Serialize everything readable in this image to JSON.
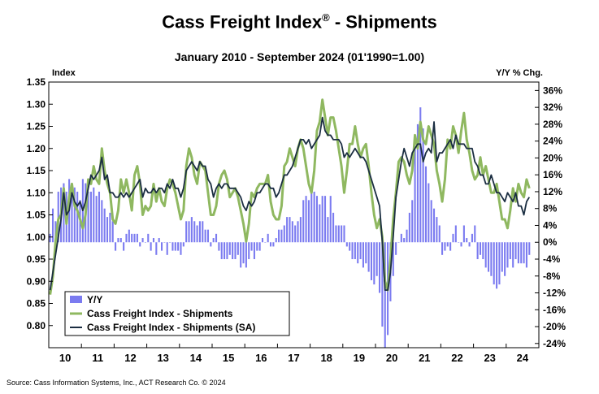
{
  "header": {
    "title": "Cass Freight Index",
    "title_mark": "®",
    "title_suffix": " - Shipments",
    "subtitle": "January 2010 - September 2024 (01'1990=1.00)"
  },
  "source": "Source: Cass Information Systems, Inc., ACT Research Co. © 2024",
  "colors": {
    "yy": "#7b7bf0",
    "nsa": "#8fb860",
    "sa": "#1b2e42",
    "frame": "#000000"
  },
  "chart_data": {
    "type": "line",
    "x_start": "2010-01",
    "x_end": "2024-09",
    "y_left": {
      "label": "Index",
      "range": [
        0.75,
        1.35
      ],
      "tick_labels": [
        "0.80",
        "0.85",
        "0.90",
        "0.95",
        "1.00",
        "1.05",
        "1.10",
        "1.15",
        "1.20",
        "1.25",
        "1.30",
        "1.35"
      ]
    },
    "y_right": {
      "label": "Y/Y % Chg.",
      "range": [
        -25,
        38
      ],
      "tick_labels": [
        "36%",
        "32%",
        "28%",
        "24%",
        "20%",
        "16%",
        "12%",
        "8%",
        "4%",
        "0%",
        "-4%",
        "-8%",
        "-12%",
        "-16%",
        "-20%",
        "-24%"
      ]
    },
    "x_tick_labels": [
      "10",
      "11",
      "12",
      "13",
      "14",
      "15",
      "16",
      "17",
      "18",
      "19",
      "20",
      "21",
      "22",
      "23",
      "24"
    ],
    "legend": {
      "position": "bottom-left",
      "entries": [
        "Y/Y",
        "Cass Freight Index - Shipments",
        "Cass Freight Index - Shipments (SA)"
      ]
    },
    "series": [
      {
        "name": "Cass Freight Index - Shipments",
        "axis": "left",
        "values": [
          0.87,
          0.91,
          0.99,
          1.04,
          1.05,
          1.11,
          1.03,
          1.09,
          1.12,
          1.07,
          1.06,
          1.04,
          1.02,
          1.05,
          1.13,
          1.12,
          1.16,
          1.13,
          1.12,
          1.2,
          1.15,
          1.12,
          1.1,
          1.04,
          1.03,
          1.06,
          1.13,
          1.1,
          1.13,
          1.1,
          1.06,
          1.14,
          1.16,
          1.12,
          1.05,
          1.07,
          1.06,
          1.07,
          1.12,
          1.08,
          1.11,
          1.08,
          1.07,
          1.11,
          1.13,
          1.12,
          1.1,
          1.07,
          1.04,
          1.06,
          1.16,
          1.2,
          1.18,
          1.14,
          1.12,
          1.17,
          1.16,
          1.15,
          1.1,
          1.05,
          1.05,
          1.07,
          1.12,
          1.14,
          1.15,
          1.13,
          1.09,
          1.1,
          1.11,
          1.09,
          1.06,
          1.03,
          0.99,
          1.03,
          1.1,
          1.09,
          1.11,
          1.12,
          1.12,
          1.12,
          1.14,
          1.08,
          1.05,
          1.04,
          1.04,
          1.07,
          1.16,
          1.17,
          1.2,
          1.18,
          1.16,
          1.2,
          1.22,
          1.2,
          1.16,
          1.12,
          1.1,
          1.15,
          1.24,
          1.26,
          1.31,
          1.27,
          1.23,
          1.27,
          1.27,
          1.24,
          1.2,
          1.16,
          1.1,
          1.15,
          1.21,
          1.21,
          1.25,
          1.21,
          1.18,
          1.2,
          1.21,
          1.16,
          1.1,
          1.05,
          1.02,
          1.04,
          1.0,
          0.9,
          0.88,
          0.95,
          1.04,
          1.1,
          1.17,
          1.18,
          1.17,
          1.14,
          1.12,
          1.15,
          1.23,
          1.2,
          1.26,
          1.22,
          1.21,
          1.25,
          1.23,
          1.21,
          1.15,
          1.12,
          1.08,
          1.13,
          1.22,
          1.2,
          1.25,
          1.23,
          1.19,
          1.24,
          1.28,
          1.22,
          1.19,
          1.15,
          1.13,
          1.14,
          1.18,
          1.14,
          1.16,
          1.13,
          1.1,
          1.1,
          1.12,
          1.08,
          1.04,
          1.04,
          1.02,
          1.06,
          1.11,
          1.08,
          1.12,
          1.1,
          1.09,
          1.13,
          1.11
        ]
      },
      {
        "name": "Cass Freight Index - Shipments (SA)",
        "axis": "left",
        "values": [
          0.88,
          0.92,
          0.96,
          1.0,
          1.04,
          1.1,
          1.05,
          1.06,
          1.1,
          1.08,
          1.07,
          1.08,
          1.06,
          1.08,
          1.11,
          1.14,
          1.13,
          1.14,
          1.15,
          1.18,
          1.13,
          1.14,
          1.1,
          1.1,
          1.09,
          1.09,
          1.1,
          1.09,
          1.1,
          1.09,
          1.1,
          1.11,
          1.12,
          1.13,
          1.09,
          1.11,
          1.1,
          1.1,
          1.11,
          1.1,
          1.11,
          1.11,
          1.1,
          1.12,
          1.11,
          1.13,
          1.11,
          1.11,
          1.09,
          1.11,
          1.15,
          1.16,
          1.17,
          1.16,
          1.15,
          1.17,
          1.16,
          1.16,
          1.13,
          1.12,
          1.09,
          1.11,
          1.12,
          1.11,
          1.12,
          1.12,
          1.11,
          1.11,
          1.11,
          1.1,
          1.09,
          1.07,
          1.06,
          1.08,
          1.07,
          1.08,
          1.1,
          1.1,
          1.11,
          1.12,
          1.12,
          1.11,
          1.11,
          1.09,
          1.1,
          1.12,
          1.14,
          1.14,
          1.15,
          1.16,
          1.18,
          1.2,
          1.22,
          1.22,
          1.21,
          1.22,
          1.2,
          1.21,
          1.22,
          1.23,
          1.27,
          1.24,
          1.23,
          1.23,
          1.22,
          1.22,
          1.22,
          1.21,
          1.18,
          1.19,
          1.18,
          1.19,
          1.2,
          1.19,
          1.18,
          1.18,
          1.17,
          1.15,
          1.13,
          1.11,
          1.09,
          1.07,
          0.99,
          0.88,
          0.88,
          0.92,
          1.0,
          1.09,
          1.13,
          1.17,
          1.2,
          1.18,
          1.16,
          1.19,
          1.2,
          1.21,
          1.21,
          1.17,
          1.19,
          1.2,
          1.19,
          1.26,
          1.17,
          1.19,
          1.19,
          1.2,
          1.21,
          1.22,
          1.2,
          1.23,
          1.21,
          1.21,
          1.21,
          1.2,
          1.2,
          1.2,
          1.17,
          1.16,
          1.14,
          1.14,
          1.12,
          1.12,
          1.14,
          1.12,
          1.1,
          1.1,
          1.09,
          1.08,
          1.1,
          1.09,
          1.08,
          1.1,
          1.07,
          1.07,
          1.05,
          1.08,
          1.09
        ]
      },
      {
        "name": "Y/Y",
        "axis": "right",
        "type": "bar",
        "values": [
          2,
          8,
          5,
          12,
          13,
          14,
          12,
          15,
          14,
          13,
          12,
          10,
          15,
          14,
          12,
          12,
          13,
          11,
          12,
          10,
          8,
          6,
          7,
          5,
          -2,
          1,
          1,
          -2,
          2,
          3,
          2,
          2,
          2,
          -1,
          1,
          0,
          2,
          -2,
          1,
          -3,
          1,
          -2,
          0,
          -3,
          0,
          -2,
          -2,
          -2,
          -3,
          -1,
          5,
          5,
          6,
          5,
          4,
          5,
          5,
          3,
          3,
          -1,
          1,
          2,
          -2,
          -4,
          -4,
          -4,
          -3,
          -4,
          -4,
          -3,
          -6,
          -5,
          -6,
          -4,
          -2,
          -4,
          -2,
          -2,
          1,
          0,
          2,
          -1,
          -1,
          1,
          3,
          3,
          4,
          6,
          6,
          5,
          4,
          5,
          6,
          10,
          11,
          10,
          12,
          12,
          11,
          9,
          11,
          11,
          6,
          11,
          7,
          4,
          4,
          4,
          4,
          -1,
          -2,
          -4,
          -4,
          -5,
          -4,
          -6,
          -5,
          -7,
          -9,
          -10,
          -8,
          -12,
          -20,
          -25,
          -22,
          -14,
          -8,
          -3,
          0,
          2,
          1,
          3,
          7,
          10,
          22,
          28,
          32,
          27,
          18,
          14,
          10,
          8,
          6,
          4,
          -3,
          -2,
          -1,
          -2,
          2,
          4,
          0,
          -1,
          4,
          1,
          -1,
          2,
          4,
          -4,
          -3,
          -4,
          -6,
          -7,
          -8,
          -10,
          -11,
          -10,
          -7,
          -8,
          -6,
          -4,
          -6,
          -4,
          -5,
          -5,
          -5,
          -6,
          -3
        ]
      }
    ]
  }
}
